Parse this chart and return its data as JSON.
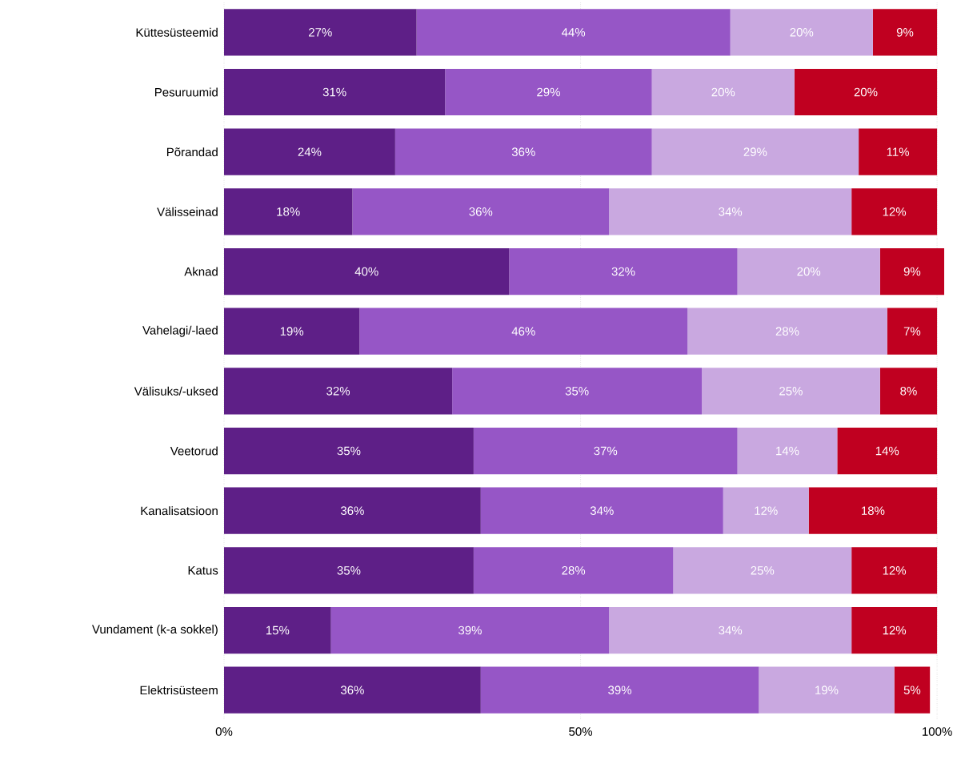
{
  "chart_data": {
    "type": "bar",
    "orientation": "horizontal",
    "stacked": true,
    "categories": [
      "Küttesüsteemid",
      "Pesuruumid",
      "Põrandad",
      "Välisseinad",
      "Aknad",
      "Vahelagi/-laed",
      "Välisuks/-uksed",
      "Veetorud",
      "Kanalisatsioon",
      "Katus",
      "Vundament (k-a sokkel)",
      "Elektrisüsteem"
    ],
    "series": [
      {
        "color": "#5e1f87",
        "values": [
          27,
          31,
          24,
          18,
          40,
          19,
          32,
          35,
          36,
          35,
          15,
          36
        ],
        "value_labels": [
          "27%",
          "31%",
          "24%",
          "18%",
          "40%",
          "19%",
          "32%",
          "35%",
          "36%",
          "35%",
          "15%",
          "36%"
        ]
      },
      {
        "color": "#9656c6",
        "values": [
          44,
          29,
          36,
          36,
          32,
          46,
          35,
          37,
          34,
          28,
          39,
          39
        ],
        "value_labels": [
          "44%",
          "29%",
          "36%",
          "36%",
          "32%",
          "46%",
          "35%",
          "37%",
          "34%",
          "28%",
          "39%",
          "39%"
        ]
      },
      {
        "color": "#c9a8e0",
        "values": [
          20,
          20,
          29,
          34,
          20,
          28,
          25,
          14,
          12,
          25,
          34,
          19
        ],
        "value_labels": [
          "20%",
          "20%",
          "29%",
          "34%",
          "20%",
          "28%",
          "25%",
          "14%",
          "12%",
          "25%",
          "34%",
          "19%"
        ]
      },
      {
        "color": "#c00020",
        "values": [
          9,
          20,
          11,
          12,
          9,
          7,
          8,
          14,
          18,
          12,
          12,
          5
        ],
        "value_labels": [
          "9%",
          "20%",
          "11%",
          "12%",
          "9%",
          "7%",
          "8%",
          "14%",
          "18%",
          "12%",
          "12%",
          "5%"
        ]
      }
    ],
    "xlim": [
      0,
      101
    ],
    "xticks": [
      {
        "value": 0,
        "label": "0%"
      },
      {
        "value": 50,
        "label": "50%"
      },
      {
        "value": 100,
        "label": "100%"
      }
    ],
    "grid": "x"
  }
}
